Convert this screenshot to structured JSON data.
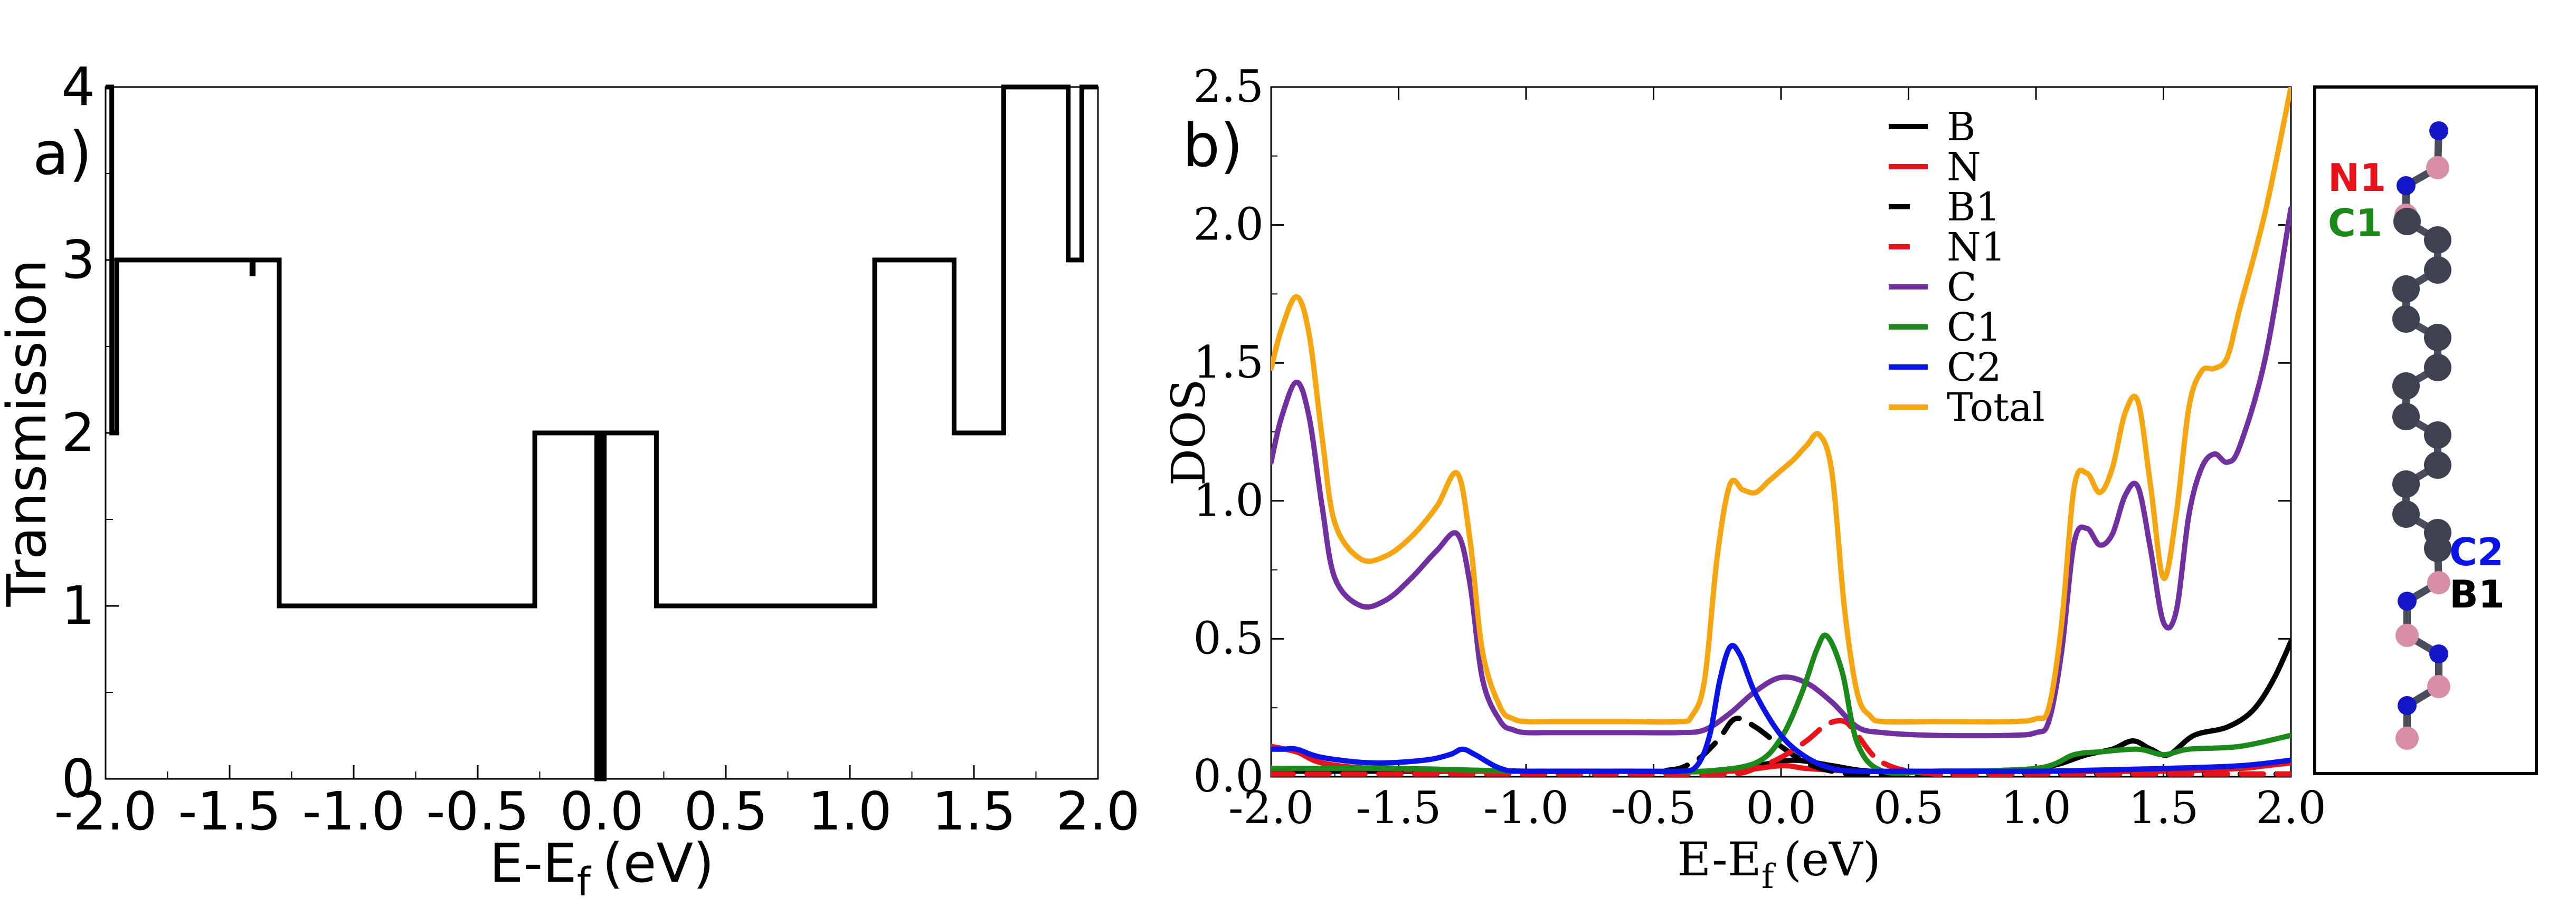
{
  "chart_data": [
    {
      "panel_label": "a)",
      "type": "line",
      "title": "",
      "xlabel": "E-E",
      "xlabel_sub": "f",
      "xlabel_units": "(eV)",
      "ylabel": "Transmission",
      "xlim": [
        -2.0,
        2.0
      ],
      "ylim": [
        0,
        4
      ],
      "xticks": [
        -2.0,
        -1.5,
        -1.0,
        -0.5,
        0.0,
        0.5,
        1.0,
        1.5,
        2.0
      ],
      "xtick_labels": [
        "-2.0",
        "-1.5",
        "-1.0",
        "-0.5",
        "0.0",
        "0.5",
        "1.0",
        "1.5",
        "2.0"
      ],
      "yticks": [
        0,
        1,
        2,
        3,
        4
      ],
      "ytick_labels": [
        "0",
        "1",
        "2",
        "3",
        "4"
      ],
      "series": [
        {
          "name": "Transmission",
          "color": "#000000",
          "x": [
            -2.0,
            -1.975,
            -1.975,
            -1.955,
            -1.955,
            -1.94,
            -1.94,
            -1.41,
            -1.41,
            -1.405,
            -1.405,
            -1.4,
            -1.4,
            -1.3,
            -1.3,
            -0.27,
            -0.27,
            -0.02,
            -0.02,
            -0.01,
            -0.01,
            0.0,
            0.0,
            0.01,
            0.01,
            0.22,
            0.22,
            1.1,
            1.1,
            1.42,
            1.42,
            1.62,
            1.62,
            1.88,
            1.88,
            1.935,
            1.935,
            1.94,
            1.94,
            2.0
          ],
          "y": [
            4,
            4,
            2,
            2,
            3,
            3,
            3,
            3,
            2.92,
            2.92,
            3,
            3,
            3,
            3,
            1,
            1,
            2,
            2,
            0,
            0,
            2,
            2,
            0,
            0,
            2,
            2,
            1,
            1,
            3,
            3,
            2,
            2,
            4,
            4,
            3,
            3,
            4,
            4,
            4,
            4
          ]
        }
      ]
    },
    {
      "panel_label": "b)",
      "type": "line",
      "title": "",
      "xlabel": "E-E",
      "xlabel_sub": "f",
      "xlabel_units": "(eV)",
      "ylabel": "DOS",
      "xlim": [
        -2.0,
        2.0
      ],
      "ylim": [
        0,
        2.5
      ],
      "xticks": [
        -2.0,
        -1.5,
        -1.0,
        -0.5,
        0.0,
        0.5,
        1.0,
        1.5,
        2.0
      ],
      "xtick_labels": [
        "-2.0",
        "-1.5",
        "-1.0",
        "-0.5",
        "0.0",
        "0.5",
        "1.0",
        "1.5",
        "2.0"
      ],
      "yticks": [
        0.0,
        0.5,
        1.0,
        1.5,
        2.0,
        2.5
      ],
      "ytick_labels": [
        "0.0",
        "0.5",
        "1.0",
        "1.5",
        "2.0",
        "2.5"
      ],
      "legend_position": "top-center",
      "series": [
        {
          "name": "B",
          "color": "#000000",
          "dash": false,
          "x": [
            -2.0,
            -1.5,
            -1.0,
            -0.5,
            -0.3,
            -0.1,
            0.05,
            0.2,
            0.35,
            0.6,
            1.0,
            1.2,
            1.3,
            1.38,
            1.45,
            1.52,
            1.62,
            1.75,
            1.85,
            1.93,
            2.0
          ],
          "y": [
            0.02,
            0.02,
            0.02,
            0.02,
            0.02,
            0.04,
            0.06,
            0.04,
            0.02,
            0.02,
            0.03,
            0.08,
            0.1,
            0.13,
            0.1,
            0.08,
            0.15,
            0.18,
            0.24,
            0.35,
            0.49
          ]
        },
        {
          "name": "N",
          "color": "#e8121a",
          "dash": false,
          "x": [
            -2.0,
            -1.9,
            -1.8,
            -1.6,
            -1.2,
            -0.5,
            -0.2,
            0.0,
            0.1,
            0.3,
            0.6,
            1.0,
            1.5,
            1.8,
            1.9,
            2.0
          ],
          "y": [
            0.11,
            0.09,
            0.05,
            0.03,
            0.02,
            0.02,
            0.02,
            0.04,
            0.03,
            0.02,
            0.02,
            0.02,
            0.02,
            0.03,
            0.04,
            0.05
          ]
        },
        {
          "name": "B1",
          "color": "#000000",
          "dash": true,
          "x": [
            -2.0,
            -1.5,
            -1.0,
            -0.5,
            -0.35,
            -0.25,
            -0.18,
            -0.1,
            0.0,
            0.1,
            0.2,
            0.3,
            0.5,
            1.0,
            2.0
          ],
          "y": [
            0.02,
            0.02,
            0.02,
            0.02,
            0.05,
            0.13,
            0.21,
            0.18,
            0.11,
            0.05,
            0.02,
            0.01,
            0.01,
            0.01,
            0.01
          ]
        },
        {
          "name": "N1",
          "color": "#e8121a",
          "dash": true,
          "x": [
            -2.0,
            -1.0,
            -0.5,
            -0.2,
            -0.1,
            0.0,
            0.1,
            0.18,
            0.25,
            0.3,
            0.4,
            0.6,
            1.0,
            2.0
          ],
          "y": [
            0.01,
            0.01,
            0.01,
            0.01,
            0.03,
            0.07,
            0.13,
            0.19,
            0.2,
            0.15,
            0.05,
            0.01,
            0.01,
            0.01
          ]
        },
        {
          "name": "C",
          "color": "#7030a0",
          "dash": false,
          "x": [
            -2.0,
            -1.96,
            -1.9,
            -1.85,
            -1.8,
            -1.75,
            -1.65,
            -1.55,
            -1.45,
            -1.35,
            -1.27,
            -1.22,
            -1.17,
            -1.1,
            -1.05,
            -1.0,
            -0.9,
            -0.6,
            -0.4,
            -0.3,
            -0.2,
            -0.1,
            0.0,
            0.1,
            0.2,
            0.3,
            0.4,
            0.6,
            0.9,
            1.0,
            1.05,
            1.1,
            1.15,
            1.2,
            1.25,
            1.3,
            1.35,
            1.4,
            1.45,
            1.5,
            1.55,
            1.6,
            1.65,
            1.7,
            1.75,
            1.8,
            1.9,
            2.0
          ],
          "y": [
            1.14,
            1.3,
            1.43,
            1.3,
            0.98,
            0.72,
            0.62,
            0.64,
            0.72,
            0.82,
            0.88,
            0.7,
            0.35,
            0.2,
            0.17,
            0.16,
            0.16,
            0.16,
            0.16,
            0.17,
            0.23,
            0.31,
            0.36,
            0.34,
            0.27,
            0.18,
            0.16,
            0.15,
            0.15,
            0.16,
            0.2,
            0.45,
            0.85,
            0.9,
            0.84,
            0.88,
            1.02,
            1.05,
            0.82,
            0.56,
            0.6,
            0.95,
            1.12,
            1.17,
            1.14,
            1.2,
            1.52,
            2.06
          ]
        },
        {
          "name": "C1",
          "color": "#1b8a1b",
          "dash": false,
          "x": [
            -2.0,
            -1.5,
            -1.0,
            -0.5,
            -0.3,
            -0.1,
            0.0,
            0.08,
            0.14,
            0.18,
            0.24,
            0.3,
            0.4,
            0.6,
            1.0,
            1.15,
            1.25,
            1.4,
            1.5,
            1.6,
            1.8,
            2.0
          ],
          "y": [
            0.03,
            0.03,
            0.02,
            0.02,
            0.02,
            0.05,
            0.14,
            0.3,
            0.46,
            0.51,
            0.38,
            0.12,
            0.02,
            0.02,
            0.03,
            0.08,
            0.09,
            0.1,
            0.08,
            0.1,
            0.11,
            0.15
          ]
        },
        {
          "name": "C2",
          "color": "#0a14e6",
          "dash": false,
          "x": [
            -2.0,
            -1.95,
            -1.9,
            -1.8,
            -1.6,
            -1.4,
            -1.3,
            -1.25,
            -1.2,
            -1.1,
            -1.0,
            -0.6,
            -0.4,
            -0.33,
            -0.28,
            -0.24,
            -0.2,
            -0.16,
            -0.1,
            0.0,
            0.1,
            0.2,
            0.3,
            0.5,
            1.0,
            1.5,
            1.8,
            2.0
          ],
          "y": [
            0.1,
            0.1,
            0.1,
            0.07,
            0.05,
            0.06,
            0.08,
            0.1,
            0.08,
            0.03,
            0.02,
            0.02,
            0.02,
            0.04,
            0.15,
            0.35,
            0.47,
            0.44,
            0.3,
            0.15,
            0.07,
            0.03,
            0.02,
            0.02,
            0.02,
            0.03,
            0.04,
            0.06
          ]
        },
        {
          "name": "Total",
          "color": "#f5a510",
          "dash": false,
          "x": [
            -2.0,
            -1.96,
            -1.9,
            -1.85,
            -1.8,
            -1.75,
            -1.65,
            -1.55,
            -1.45,
            -1.35,
            -1.27,
            -1.22,
            -1.17,
            -1.1,
            -1.05,
            -1.0,
            -0.9,
            -0.6,
            -0.4,
            -0.35,
            -0.3,
            -0.25,
            -0.2,
            -0.15,
            -0.1,
            -0.05,
            0.0,
            0.05,
            0.1,
            0.15,
            0.2,
            0.25,
            0.3,
            0.35,
            0.4,
            0.6,
            0.9,
            1.0,
            1.05,
            1.1,
            1.15,
            1.2,
            1.25,
            1.3,
            1.35,
            1.4,
            1.45,
            1.5,
            1.55,
            1.6,
            1.65,
            1.7,
            1.75,
            1.8,
            1.9,
            2.0
          ],
          "y": [
            1.48,
            1.62,
            1.74,
            1.6,
            1.23,
            0.92,
            0.79,
            0.8,
            0.87,
            0.98,
            1.1,
            0.86,
            0.45,
            0.25,
            0.21,
            0.2,
            0.2,
            0.2,
            0.2,
            0.22,
            0.35,
            0.8,
            1.06,
            1.04,
            1.03,
            1.07,
            1.11,
            1.15,
            1.2,
            1.24,
            1.1,
            0.6,
            0.3,
            0.22,
            0.2,
            0.2,
            0.2,
            0.21,
            0.25,
            0.55,
            1.05,
            1.1,
            1.03,
            1.12,
            1.32,
            1.36,
            1.05,
            0.72,
            0.95,
            1.34,
            1.47,
            1.48,
            1.52,
            1.7,
            2.05,
            2.5
          ]
        }
      ]
    }
  ],
  "structure": {
    "labels": [
      {
        "text": "N1",
        "color": "#e8121a"
      },
      {
        "text": "C1",
        "color": "#1b8a1b"
      },
      {
        "text": "C2",
        "color": "#0a14e6"
      },
      {
        "text": "B1",
        "color": "#000000"
      }
    ],
    "atom_colors": {
      "N": "#1417c8",
      "B": "#d88ea6",
      "C": "#3e4250"
    }
  }
}
